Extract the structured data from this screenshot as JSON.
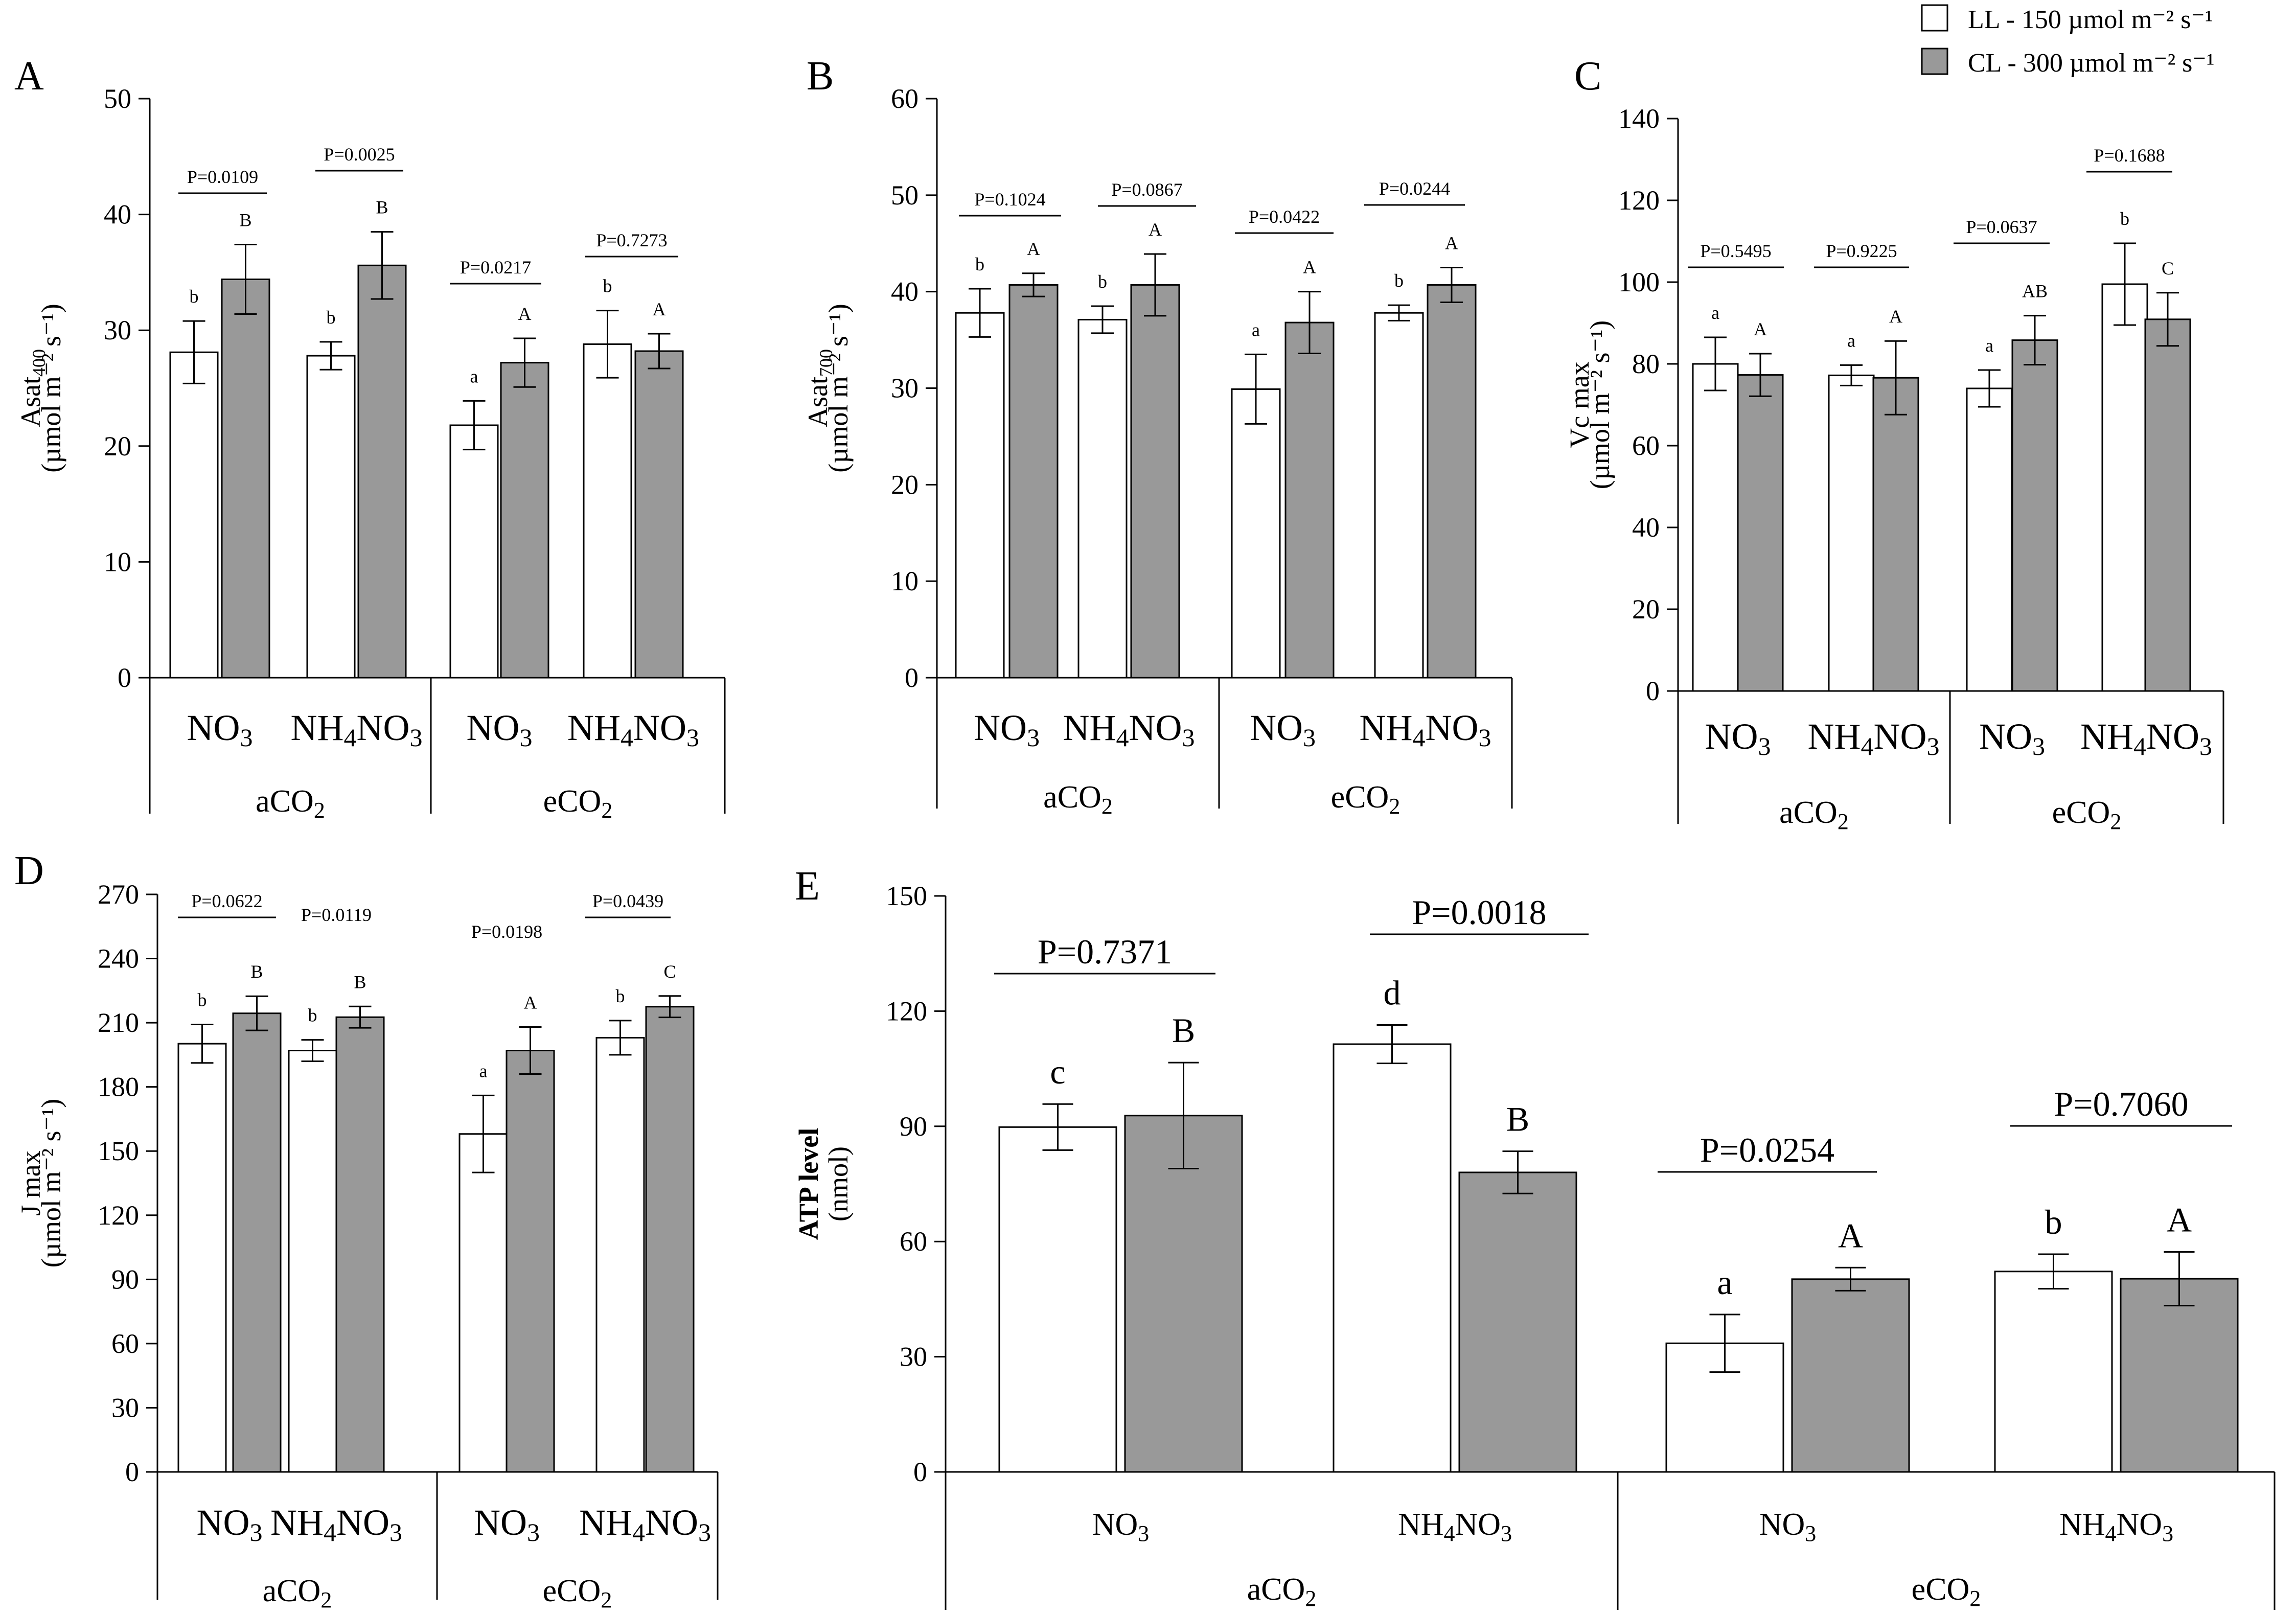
{
  "legend": [
    {
      "label": "LL - 150 µmol m⁻² s⁻¹",
      "color": "#ffffff"
    },
    {
      "label": "CL - 300 µmol m⁻² s⁻¹",
      "color": "#999999"
    }
  ],
  "groups": {
    "co2": [
      "aCO",
      "eCO"
    ],
    "nitrogen": [
      "NO",
      "NH",
      "NO"
    ]
  },
  "chart_data": [
    {
      "panel": "A",
      "type": "bar",
      "ylabel": "Asat400",
      "ylabel_main": "Asat",
      "ylabel_sub": "400",
      "yunit": "(µmol m⁻² s⁻¹)",
      "ylim": [
        0,
        50
      ],
      "yticks": [
        0,
        10,
        20,
        30,
        40,
        50
      ],
      "categories": [
        "aCO2 NO3",
        "aCO2 NH4NO3",
        "eCO2 NO3",
        "eCO2 NH4NO3"
      ],
      "series": [
        {
          "name": "LL - 150 µmol m⁻² s⁻¹",
          "values": [
            28.1,
            27.8,
            21.8,
            28.8
          ],
          "err": [
            2.7,
            1.2,
            2.1,
            2.9
          ],
          "letters": [
            "b",
            "b",
            "a",
            "b"
          ]
        },
        {
          "name": "CL - 300 µmol m⁻² s⁻¹",
          "values": [
            34.4,
            35.6,
            27.2,
            28.2
          ],
          "err": [
            3.0,
            2.9,
            2.1,
            1.5
          ],
          "letters": [
            "B",
            "B",
            "A",
            "A"
          ]
        }
      ],
      "pvalues": [
        "P=0.0109",
        "P=0.0025",
        "P=0.0217",
        "P=0.7273"
      ]
    },
    {
      "panel": "B",
      "type": "bar",
      "ylabel": "Asat700",
      "ylabel_main": "Asat",
      "ylabel_sub": "700",
      "yunit": "(µmol m⁻² s⁻¹)",
      "ylim": [
        0,
        60
      ],
      "yticks": [
        0,
        10,
        20,
        30,
        40,
        50,
        60
      ],
      "categories": [
        "aCO2 NO3",
        "aCO2 NH4NO3",
        "eCO2 NO3",
        "eCO2 NH4NO3"
      ],
      "series": [
        {
          "name": "LL - 150 µmol m⁻² s⁻¹",
          "values": [
            37.8,
            37.1,
            29.9,
            37.8
          ],
          "err": [
            2.5,
            1.4,
            3.6,
            0.8
          ],
          "letters": [
            "b",
            "b",
            "a",
            "b"
          ]
        },
        {
          "name": "CL - 300 µmol m⁻² s⁻¹",
          "values": [
            40.7,
            40.7,
            36.8,
            40.7
          ],
          "err": [
            1.2,
            3.2,
            3.2,
            1.8
          ],
          "letters": [
            "A",
            "A",
            "A",
            "A"
          ]
        }
      ],
      "pvalues": [
        "P=0.1024",
        "P=0.0867",
        "P=0.0422",
        "P=0.0244"
      ]
    },
    {
      "panel": "C",
      "type": "bar",
      "ylabel": "Vc max",
      "ylabel_main": "Vc max",
      "ylabel_sub": "",
      "yunit": "(µmol m⁻² s⁻¹)",
      "ylim": [
        0,
        140
      ],
      "yticks": [
        0,
        20,
        40,
        60,
        80,
        100,
        120,
        140
      ],
      "categories": [
        "aCO2 NO3",
        "aCO2 NH4NO3",
        "eCO2 NO3",
        "eCO2 NH4NO3"
      ],
      "series": [
        {
          "name": "LL - 150 µmol m⁻² s⁻¹",
          "values": [
            80.0,
            77.2,
            74.0,
            99.5
          ],
          "err": [
            6.5,
            2.5,
            4.5,
            10.0
          ],
          "letters": [
            "a",
            "a",
            "a",
            "b"
          ]
        },
        {
          "name": "CL - 300 µmol m⁻² s⁻¹",
          "values": [
            77.3,
            76.6,
            85.8,
            90.9
          ],
          "err": [
            5.2,
            9.0,
            6.0,
            6.5
          ],
          "letters": [
            "A",
            "A",
            "AB",
            "C"
          ]
        }
      ],
      "pvalues": [
        "P=0.5495",
        "P=0.9225",
        "P=0.0637",
        "P=0.1688"
      ]
    },
    {
      "panel": "D",
      "type": "bar",
      "ylabel": "J max",
      "ylabel_main": "J max",
      "ylabel_sub": "",
      "yunit": "(µmol m⁻² s⁻¹)",
      "ylim": [
        0,
        270
      ],
      "yticks": [
        0,
        30,
        60,
        90,
        120,
        150,
        180,
        210,
        240,
        270
      ],
      "categories": [
        "aCO2 NO3",
        "aCO2 NH4NO3",
        "eCO2 NO3",
        "eCO2 NH4NO3"
      ],
      "series": [
        {
          "name": "LL - 150 µmol m⁻² s⁻¹",
          "values": [
            200.2,
            197.0,
            158.0,
            203.0
          ],
          "err": [
            9.0,
            5.0,
            18.0,
            8.0
          ],
          "letters": [
            "b",
            "b",
            "a",
            "b"
          ]
        },
        {
          "name": "CL - 300 µmol m⁻² s⁻¹",
          "values": [
            214.4,
            212.6,
            197.0,
            217.5
          ],
          "err": [
            8.0,
            5.0,
            11.0,
            5.0
          ],
          "letters": [
            "B",
            "B",
            "A",
            "C"
          ]
        }
      ],
      "pvalues": [
        "P=0.0622",
        "P=0.0119",
        "P=0.0198",
        "P=0.0439"
      ]
    },
    {
      "panel": "E",
      "type": "bar",
      "ylabel": "ATP level (nmol)",
      "ylabel_main": "ATP level",
      "ylabel_sub": "",
      "yunit": "(nmol)",
      "ylim": [
        0,
        150
      ],
      "yticks": [
        0,
        30,
        60,
        90,
        120,
        150
      ],
      "categories": [
        "aCO2 NO3",
        "aCO2 NH4NO3",
        "eCO2 NO3",
        "eCO2 NH4NO3"
      ],
      "series": [
        {
          "name": "LL - 150 µmol m⁻² s⁻¹",
          "values": [
            89.8,
            111.4,
            33.5,
            52.2
          ],
          "err": [
            6.0,
            5.0,
            7.5,
            4.5
          ],
          "letters": [
            "c",
            "d",
            "a",
            "b"
          ]
        },
        {
          "name": "CL - 300 µmol m⁻² s⁻¹",
          "values": [
            92.8,
            78.0,
            50.2,
            50.3
          ],
          "err": [
            13.8,
            5.5,
            3.0,
            7.0
          ],
          "letters": [
            "B",
            "B",
            "A",
            "A"
          ]
        }
      ],
      "pvalues": [
        "P=0.7371",
        "P=0.0018",
        "P=0.0254",
        "P=0.7060"
      ]
    }
  ]
}
